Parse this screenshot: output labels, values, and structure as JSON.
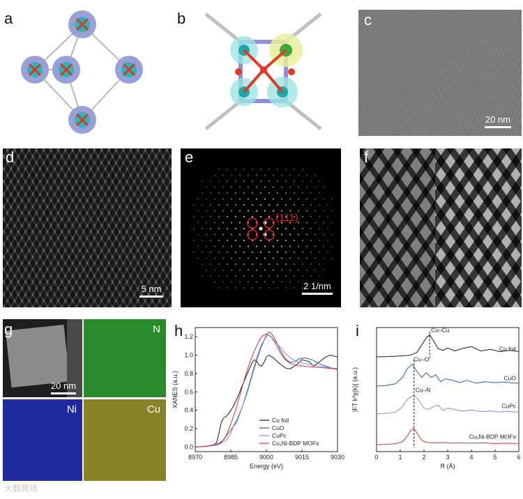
{
  "panels": {
    "a": {
      "label": "a"
    },
    "b": {
      "label": "b"
    },
    "c": {
      "label": "c",
      "scale": "20 nm"
    },
    "d": {
      "label": "d",
      "scale": "5 nm"
    },
    "e": {
      "label": "e",
      "scale": "2 1/nm",
      "annotation": "(111)"
    },
    "f": {
      "label": "f"
    },
    "g": {
      "label": "g",
      "scale": "20 nm",
      "maps": [
        "N",
        "Ni",
        "Cu"
      ]
    },
    "h": {
      "label": "h"
    },
    "i": {
      "label": "i"
    }
  },
  "colors": {
    "cu_foil": "#1a1a1a",
    "cuo": "#2b5fa8",
    "cupc": "#8f86d9",
    "mof": "#d33333"
  },
  "watermark": "大数跨境",
  "chart_data": [
    {
      "type": "line",
      "panel": "h",
      "xlabel": "Energy (eV)",
      "ylabel": "XANES (a.u.)",
      "xlim": [
        8970,
        9030
      ],
      "ylim": [
        -0.05,
        1.3
      ],
      "xticks": [
        8970,
        8985,
        9000,
        9015,
        9030
      ],
      "yticks": [
        "0.0",
        "0.2",
        "0.4",
        "0.6",
        "0.8",
        "1.0",
        "1.2"
      ],
      "series": [
        {
          "name": "Cu foil",
          "color": "#1a1a1a",
          "x": [
            8970,
            8975,
            8978,
            8979,
            8980,
            8981,
            8982,
            8983,
            8984,
            8986,
            8988,
            8990,
            8992,
            8994,
            8995,
            8996,
            8997,
            8998,
            8999,
            9000,
            9001,
            9003,
            9005,
            9008,
            9010,
            9013,
            9015,
            9018,
            9020,
            9022,
            9025,
            9027,
            9030
          ],
          "y": [
            0.0,
            0.01,
            0.02,
            0.05,
            0.15,
            0.27,
            0.32,
            0.33,
            0.36,
            0.44,
            0.55,
            0.68,
            0.8,
            0.92,
            0.95,
            0.93,
            0.89,
            0.88,
            0.92,
            0.98,
            1.0,
            0.97,
            0.92,
            0.86,
            0.85,
            0.9,
            0.95,
            0.93,
            0.88,
            0.92,
            0.98,
            1.0,
            0.98
          ]
        },
        {
          "name": "CuO",
          "color": "#2b5fa8",
          "x": [
            8970,
            8975,
            8980,
            8982,
            8984,
            8986,
            8988,
            8990,
            8992,
            8994,
            8996,
            8998,
            9000,
            9001,
            9002,
            9004,
            9006,
            9008,
            9010,
            9012,
            9014,
            9016,
            9018,
            9020,
            9022,
            9025,
            9030
          ],
          "y": [
            0.0,
            0.01,
            0.04,
            0.08,
            0.15,
            0.22,
            0.32,
            0.45,
            0.6,
            0.78,
            0.95,
            1.1,
            1.22,
            1.25,
            1.24,
            1.16,
            1.05,
            0.96,
            0.92,
            0.93,
            0.96,
            0.97,
            0.96,
            0.94,
            0.91,
            0.88,
            0.84
          ]
        },
        {
          "name": "CuPc",
          "color": "#8f86d9",
          "x": [
            8970,
            8975,
            8980,
            8983,
            8985,
            8986,
            8987,
            8988,
            8990,
            8992,
            8994,
            8996,
            8998,
            9000,
            9001,
            9002,
            9004,
            9006,
            9008,
            9010,
            9013,
            9016,
            9020,
            9025,
            9030
          ],
          "y": [
            0.0,
            0.01,
            0.03,
            0.07,
            0.15,
            0.22,
            0.25,
            0.3,
            0.45,
            0.62,
            0.8,
            0.98,
            1.12,
            1.2,
            1.22,
            1.2,
            1.14,
            1.08,
            1.02,
            0.97,
            0.93,
            0.91,
            0.89,
            0.87,
            0.85
          ]
        },
        {
          "name": "Cu1Ni-BDP MOFs",
          "color": "#d33333",
          "x": [
            8970,
            8975,
            8979,
            8981,
            8983,
            8985,
            8987,
            8989,
            8991,
            8993,
            8995,
            8997,
            8998,
            8999,
            9000,
            9002,
            9004,
            9006,
            9008,
            9010,
            9013,
            9016,
            9020,
            9025,
            9030
          ],
          "y": [
            0.0,
            0.01,
            0.02,
            0.05,
            0.12,
            0.25,
            0.4,
            0.58,
            0.76,
            0.92,
            1.05,
            1.16,
            1.2,
            1.22,
            1.23,
            1.2,
            1.12,
            1.02,
            0.95,
            0.91,
            0.89,
            0.88,
            0.87,
            0.86,
            0.85
          ]
        }
      ],
      "legend": [
        "Cu foil",
        "CuO",
        "CuPc",
        "Cu₁Ni-BDP MOFs"
      ]
    },
    {
      "type": "line",
      "panel": "i",
      "xlabel": "R (Å)",
      "ylabel": "|FT k³χ(k)| (a.u.)",
      "xlim": [
        0,
        6
      ],
      "xticks": [
        "0",
        "1",
        "2",
        "3",
        "4",
        "5",
        "6"
      ],
      "annotations": [
        {
          "text": "Cu–Cu",
          "x": 2.24
        },
        {
          "text": "Cu–O",
          "x": 1.5
        },
        {
          "text": "Cu–N",
          "x": 1.58
        }
      ],
      "series": [
        {
          "name": "Cu foil",
          "color": "#1a1a1a",
          "offset": 3.0,
          "x": [
            0,
            0.5,
            1.0,
            1.4,
            1.7,
            1.9,
            2.1,
            2.24,
            2.4,
            2.6,
            2.8,
            3.0,
            3.3,
            3.6,
            4.0,
            4.4,
            4.8,
            5.2,
            5.6,
            6.0
          ],
          "y": [
            0.0,
            0.01,
            0.03,
            0.05,
            0.15,
            0.4,
            0.65,
            0.75,
            0.55,
            0.28,
            0.22,
            0.3,
            0.2,
            0.28,
            0.35,
            0.2,
            0.26,
            0.18,
            0.22,
            0.18
          ]
        },
        {
          "name": "CuO",
          "color": "#2b5fa8",
          "offset": 2.0,
          "x": [
            0,
            0.4,
            0.8,
            1.1,
            1.3,
            1.5,
            1.7,
            1.9,
            2.1,
            2.3,
            2.5,
            2.7,
            2.9,
            3.2,
            3.5,
            3.8,
            4.2,
            4.6,
            5.0,
            5.4,
            5.8,
            6.0
          ],
          "y": [
            0.0,
            0.02,
            0.08,
            0.3,
            0.6,
            0.75,
            0.5,
            0.3,
            0.45,
            0.3,
            0.38,
            0.15,
            0.25,
            0.2,
            0.12,
            0.2,
            0.1,
            0.15,
            0.12,
            0.14,
            0.1,
            0.1
          ]
        },
        {
          "name": "CuPc",
          "color": "#8f86d9",
          "offset": 1.05,
          "x": [
            0,
            0.4,
            0.8,
            1.1,
            1.3,
            1.58,
            1.8,
            2.0,
            2.2,
            2.4,
            2.6,
            2.8,
            3.0,
            3.3,
            3.6,
            4.0,
            4.4,
            4.8,
            5.2,
            5.6,
            6.0
          ],
          "y": [
            0.0,
            0.02,
            0.06,
            0.25,
            0.5,
            0.65,
            0.45,
            0.2,
            0.15,
            0.25,
            0.3,
            0.12,
            0.2,
            0.15,
            0.1,
            0.13,
            0.08,
            0.1,
            0.07,
            0.08,
            0.06
          ]
        },
        {
          "name": "Cu1Ni-BDP MOFs",
          "color": "#d33333",
          "offset": 0.0,
          "x": [
            0,
            0.4,
            0.8,
            1.1,
            1.3,
            1.45,
            1.58,
            1.7,
            1.9,
            2.1,
            2.4,
            2.8,
            3.2,
            3.6,
            4.0,
            4.5,
            5.0,
            5.5,
            6.0
          ],
          "y": [
            0.0,
            0.01,
            0.03,
            0.1,
            0.3,
            0.5,
            0.55,
            0.4,
            0.15,
            0.08,
            0.06,
            0.07,
            0.05,
            0.06,
            0.05,
            0.06,
            0.04,
            0.05,
            0.04
          ]
        }
      ],
      "curve_labels": [
        "Cu foil",
        "CuO",
        "CuPc",
        "Cu₁Ni-BDP MOFs"
      ]
    }
  ]
}
